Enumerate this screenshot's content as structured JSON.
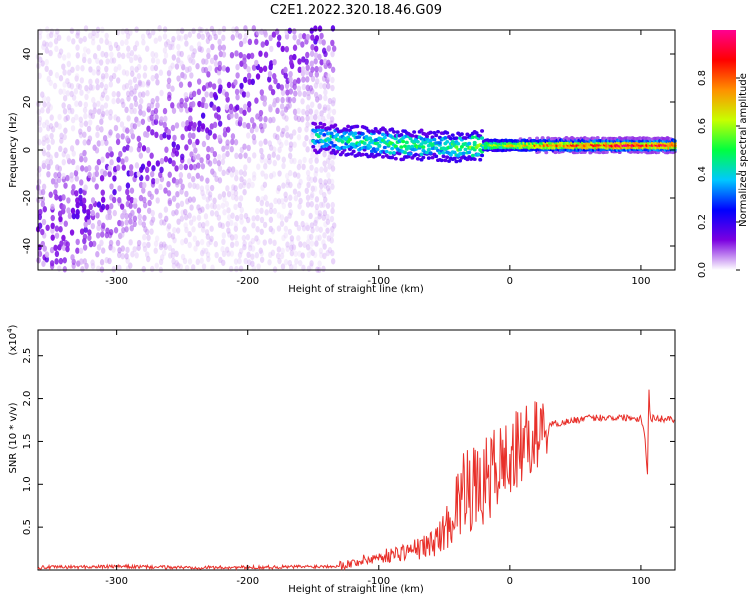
{
  "chart_data": [
    {
      "type": "heatmap",
      "title": "C2E1.2022.320.18.46.G09",
      "xlabel": "Height of straight line (km)",
      "ylabel": "Frequency (Hz)",
      "xlim": [
        -360,
        126
      ],
      "ylim": [
        -50,
        50
      ],
      "xticks": [
        -300,
        -200,
        -100,
        0,
        100
      ],
      "yticks": [
        -40,
        -20,
        0,
        20,
        40
      ],
      "grid": false,
      "colorbar": {
        "label": "Normalized spectral amplitude",
        "range": [
          0.0,
          1.0
        ],
        "ticks": [
          "0.0",
          "0.2",
          "0.4",
          "0.6",
          "0.8"
        ],
        "colors": [
          "#ffffff",
          "#7b00e0",
          "#0000ff",
          "#00c8ff",
          "#00ff40",
          "#c8ff00",
          "#ff9000",
          "#ff0000",
          "#ff0090"
        ]
      },
      "regions": [
        {
          "x": [
            -360,
            -133
          ],
          "frequency_range": [
            -50,
            50
          ],
          "amplitude_range": [
            0.02,
            0.18
          ],
          "description_type": "broadband"
        },
        {
          "x": [
            -150,
            126
          ],
          "frequency_center": [
            4,
            2
          ],
          "frequency_width": 8,
          "amplitude_range": [
            0.3,
            1.0
          ],
          "description_type": "narrow band"
        }
      ],
      "ridge": {
        "x": [
          -150,
          -125,
          -100,
          -80,
          -60,
          -40,
          -20,
          0,
          20,
          40,
          60,
          80,
          100,
          120
        ],
        "frequency": [
          5,
          4,
          3,
          2,
          2,
          1,
          2,
          2,
          2,
          2,
          2,
          2,
          2,
          2
        ],
        "amplitude": [
          0.45,
          0.5,
          0.5,
          0.55,
          0.5,
          0.55,
          0.6,
          0.7,
          0.8,
          0.85,
          0.9,
          0.95,
          0.95,
          0.95
        ]
      }
    },
    {
      "type": "line",
      "xlabel": "Height of straight line (km)",
      "ylabel": "SNR (10 * v/v)",
      "scale_label": "(x10",
      "scale_exp": "4",
      "scale_close": ")",
      "xlim": [
        -360,
        126
      ],
      "ylim": [
        0,
        2.8
      ],
      "xticks": [
        -300,
        -200,
        -100,
        0,
        100
      ],
      "yticks": [
        "0.5",
        "1.0",
        "1.5",
        "2.0",
        "2.5"
      ],
      "grid": false,
      "series": [
        {
          "color": "#e8302a",
          "x": [
            -360,
            -300,
            -250,
            -200,
            -150,
            -130,
            -120,
            -110,
            -100,
            -90,
            -80,
            -70,
            -60,
            -50,
            -45,
            -40,
            -35,
            -32,
            -30,
            -25,
            -20,
            -10,
            0,
            10,
            20,
            30,
            40,
            50,
            60,
            70,
            80,
            90,
            100,
            103,
            105,
            106,
            107,
            110,
            115,
            120,
            126
          ],
          "values": [
            0.03,
            0.04,
            0.03,
            0.03,
            0.04,
            0.05,
            0.08,
            0.12,
            0.15,
            0.18,
            0.22,
            0.25,
            0.3,
            0.45,
            0.6,
            0.8,
            0.9,
            1.4,
            0.95,
            0.9,
            1.0,
            1.2,
            1.3,
            1.45,
            1.58,
            1.7,
            1.72,
            1.75,
            1.77,
            1.78,
            1.78,
            1.78,
            1.77,
            1.6,
            1.1,
            2.2,
            1.75,
            1.78,
            1.76,
            1.77,
            1.76
          ]
        }
      ]
    }
  ]
}
